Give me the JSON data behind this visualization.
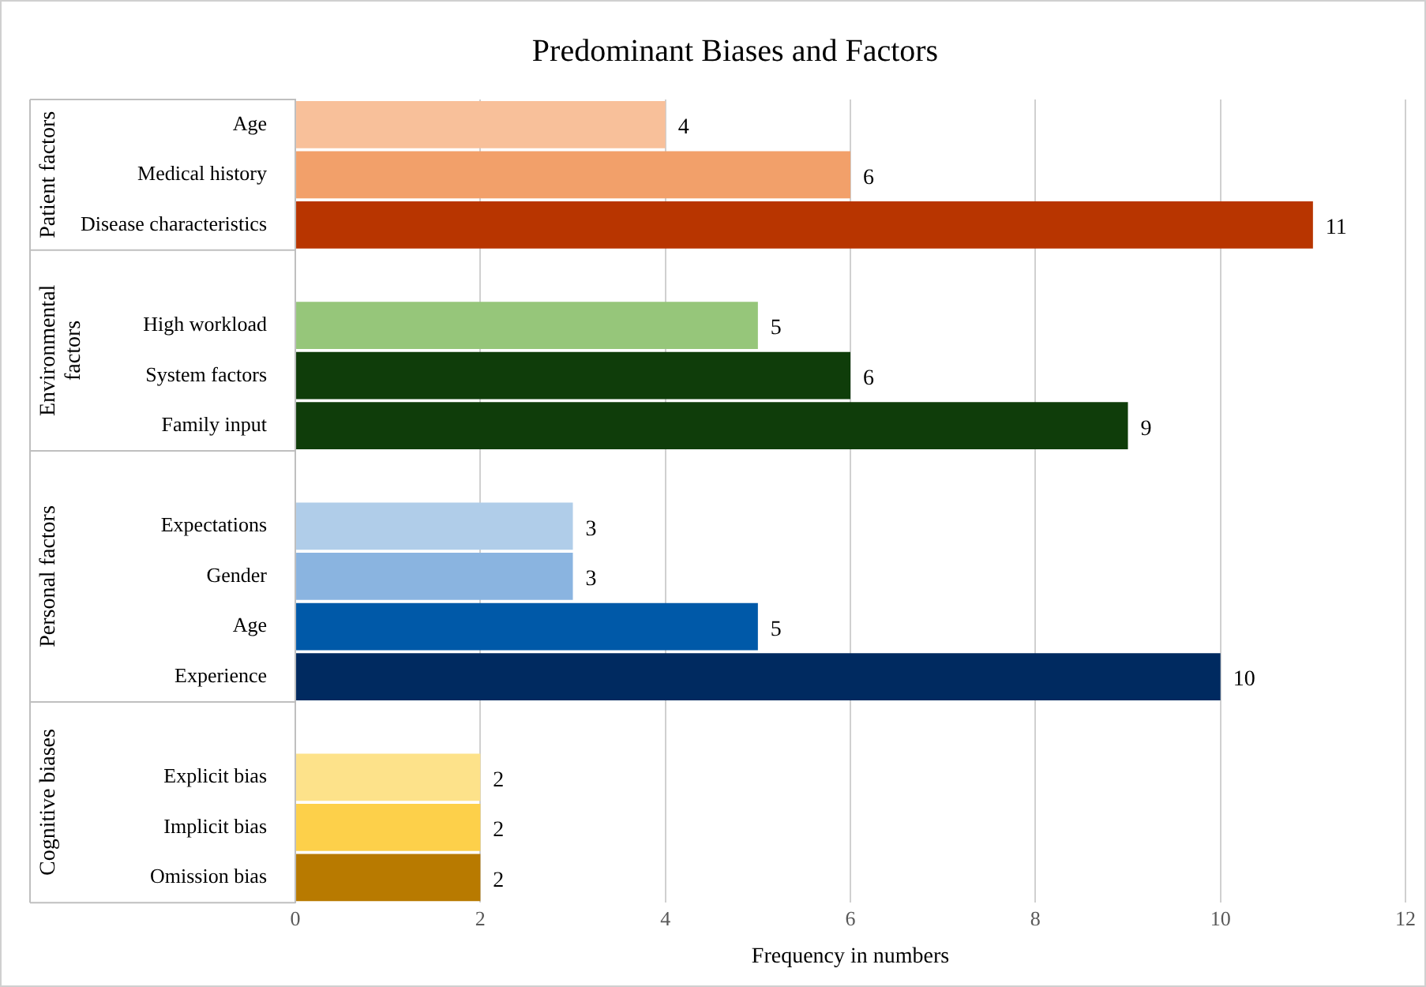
{
  "chart_data": {
    "type": "bar",
    "orientation": "horizontal",
    "title": "Predominant Biases and Factors",
    "xlabel": "Frequency in numbers",
    "categories": [
      "Age",
      "Medical history",
      "Disease characteristics",
      null,
      "High workload",
      "System factors",
      "Family input",
      null,
      "Expectations",
      "Gender",
      "Age",
      "Experience",
      null,
      "Explicit bias",
      "Implicit bias",
      "Omission bias"
    ],
    "values": [
      4,
      6,
      11,
      null,
      5,
      6,
      9,
      null,
      3,
      3,
      5,
      10,
      null,
      2,
      2,
      2
    ],
    "colors": [
      "#f8c09a",
      "#f2a06a",
      "#b83500",
      "#ffffff",
      "#96c67a",
      "#0f3d0a",
      "#0f3d0a",
      "#ffffff",
      "#b0cde9",
      "#8ab4e0",
      "#0059a8",
      "#002a60",
      "#ffffff",
      "#fde28a",
      "#fdd04a",
      "#b87a00"
    ],
    "annotations": [
      "Patient factors",
      "Environmental factors",
      "Personal factors",
      "Cognitive biases"
    ],
    "xlim": [
      0,
      12
    ],
    "xticks": [
      0,
      2,
      4,
      6,
      8,
      10,
      12
    ],
    "grid": "x",
    "data_labels": true
  }
}
